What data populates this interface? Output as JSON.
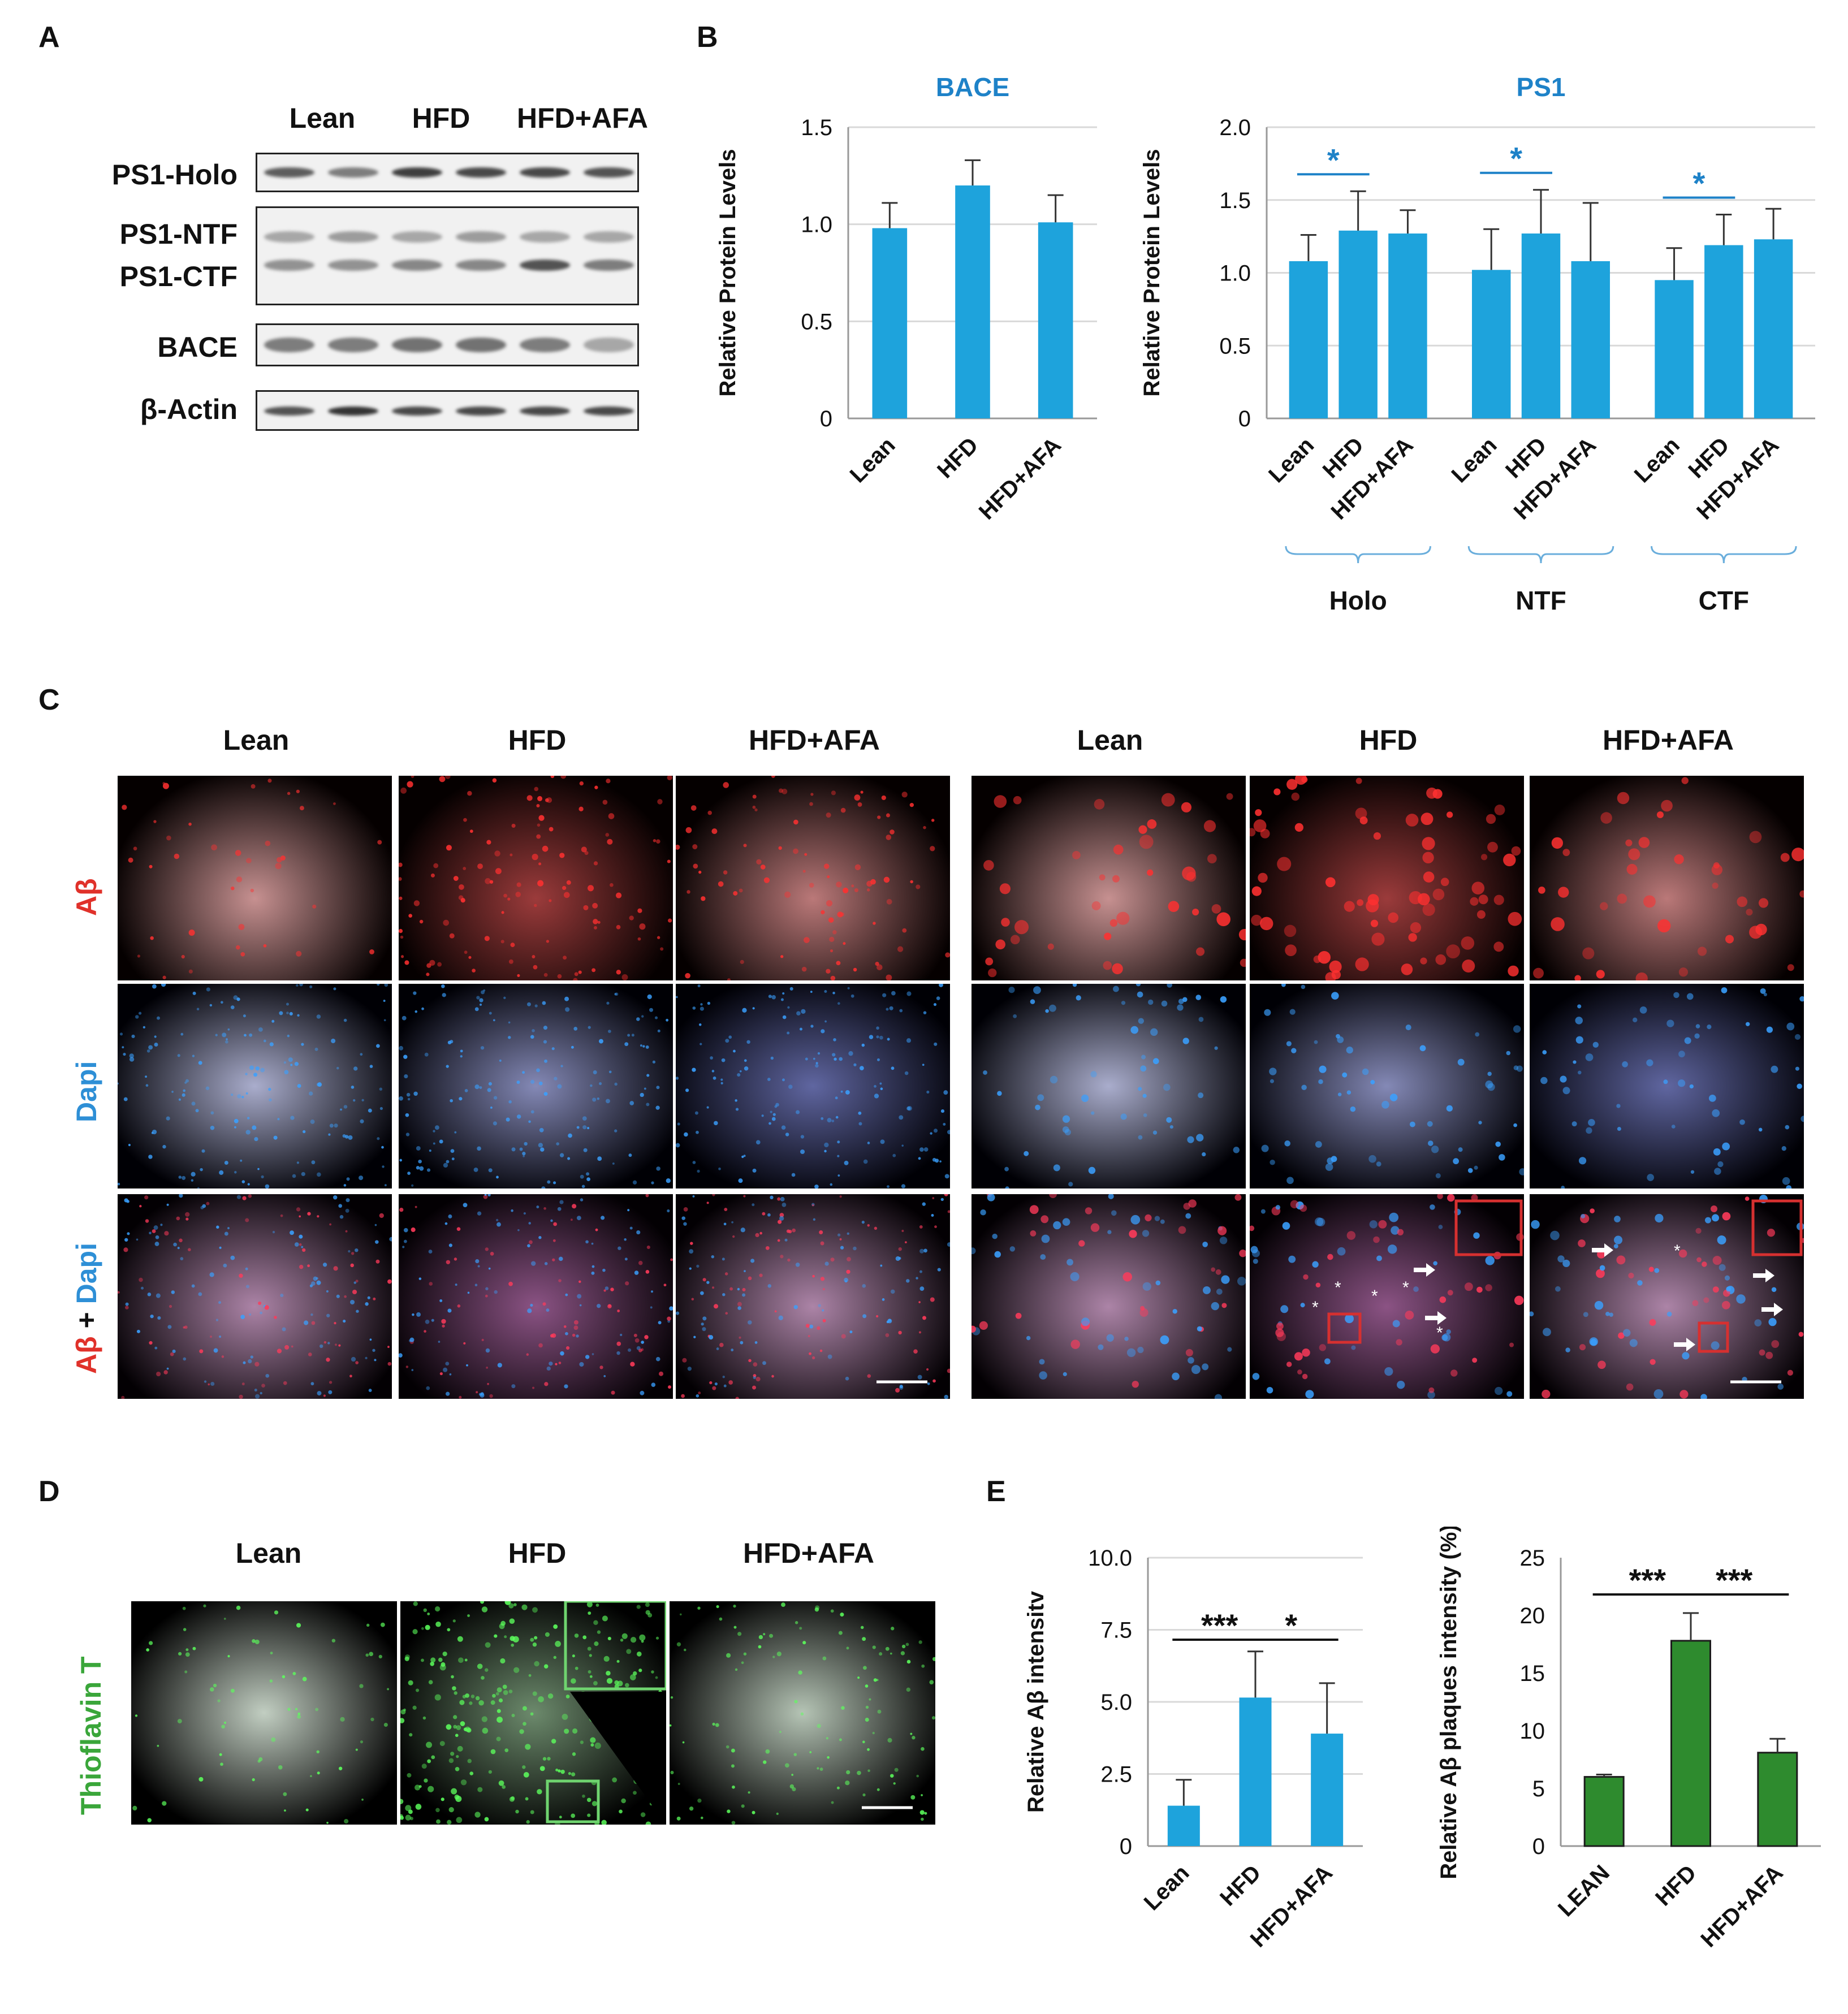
{
  "panels": {
    "A": "A",
    "B": "B",
    "C": "C",
    "D": "D",
    "E": "E"
  },
  "groups": [
    "Lean",
    "HFD",
    "HFD+AFA"
  ],
  "groups_upper": [
    "LEAN",
    "HFD",
    "HFD+AFA"
  ],
  "blot": {
    "rows": [
      {
        "label": "PS1-Holo"
      },
      {
        "label": "PS1-NTF"
      },
      {
        "label": "PS1-CTF"
      },
      {
        "label": "BACE"
      },
      {
        "label": "β-Actin"
      }
    ]
  },
  "stains": {
    "abeta": "Aβ",
    "dapi": "Dapi",
    "plus": " + ",
    "thioflavin": "Thioflavin T"
  },
  "colors": {
    "bar_blue": "#1ea3dc",
    "bar_green": "#2e8b2e",
    "title_blue": "#1e82c8",
    "abeta_red": "#e0312a",
    "dapi_blue": "#2e8fd6",
    "tht_green": "#3aa63a"
  },
  "chart_data": [
    {
      "type": "bar",
      "title": "BACE",
      "ylabel": "Relative Protein Levels",
      "categories": [
        "Lean",
        "HFD",
        "HFD+AFA"
      ],
      "values": [
        0.98,
        1.2,
        1.01
      ],
      "errors": [
        0.13,
        0.13,
        0.14
      ],
      "yticks": [
        "0",
        "0.5",
        "1.0",
        "1.5"
      ],
      "ylim": [
        0,
        1.5
      ],
      "grid": true
    },
    {
      "type": "bar",
      "title": "PS1",
      "ylabel": "Relative Protein Levels",
      "groups": [
        "Holo",
        "NTF",
        "CTF"
      ],
      "categories": [
        "Lean",
        "HFD",
        "HFD+AFA"
      ],
      "values": [
        [
          1.08,
          1.29,
          1.27
        ],
        [
          1.02,
          1.27,
          1.08
        ],
        [
          0.95,
          1.19,
          1.23
        ]
      ],
      "errors": [
        [
          0.18,
          0.27,
          0.16
        ],
        [
          0.28,
          0.3,
          0.4
        ],
        [
          0.22,
          0.21,
          0.21
        ]
      ],
      "significance": [
        {
          "group": 0,
          "pair": [
            0,
            1
          ],
          "label": "*"
        },
        {
          "group": 1,
          "pair": [
            0,
            1
          ],
          "label": "*"
        },
        {
          "group": 2,
          "pair": [
            0,
            1
          ],
          "label": "*"
        }
      ],
      "yticks": [
        "0",
        "0.5",
        "1.0",
        "1.5",
        "2.0"
      ],
      "ylim": [
        0,
        2.0
      ],
      "grid": true
    },
    {
      "type": "bar",
      "title": "",
      "ylabel": "Relative Aβ intensitv",
      "categories": [
        "Lean",
        "HFD",
        "HFD+AFA"
      ],
      "values": [
        1.4,
        5.15,
        3.9
      ],
      "errors": [
        0.9,
        1.6,
        1.75
      ],
      "significance": [
        {
          "pair": [
            0,
            1
          ],
          "label": "***"
        },
        {
          "pair": [
            1,
            2
          ],
          "label": "*"
        }
      ],
      "yticks": [
        "0",
        "2.5",
        "5.0",
        "7.5",
        "10.0"
      ],
      "ylim": [
        0,
        10
      ],
      "grid": true
    },
    {
      "type": "bar",
      "title": "",
      "ylabel": "Relative Aβ plaques intensity (%)",
      "categories": [
        "LEAN",
        "HFD",
        "HFD+AFA"
      ],
      "values": [
        6.0,
        17.8,
        8.1
      ],
      "errors": [
        0.2,
        2.4,
        1.2
      ],
      "significance": [
        {
          "pair": [
            0,
            1
          ],
          "label": "***"
        },
        {
          "pair": [
            1,
            2
          ],
          "label": "***"
        }
      ],
      "yticks": [
        "0",
        "5",
        "10",
        "15",
        "20",
        "25"
      ],
      "ylim": [
        0,
        25
      ],
      "grid": false
    }
  ]
}
